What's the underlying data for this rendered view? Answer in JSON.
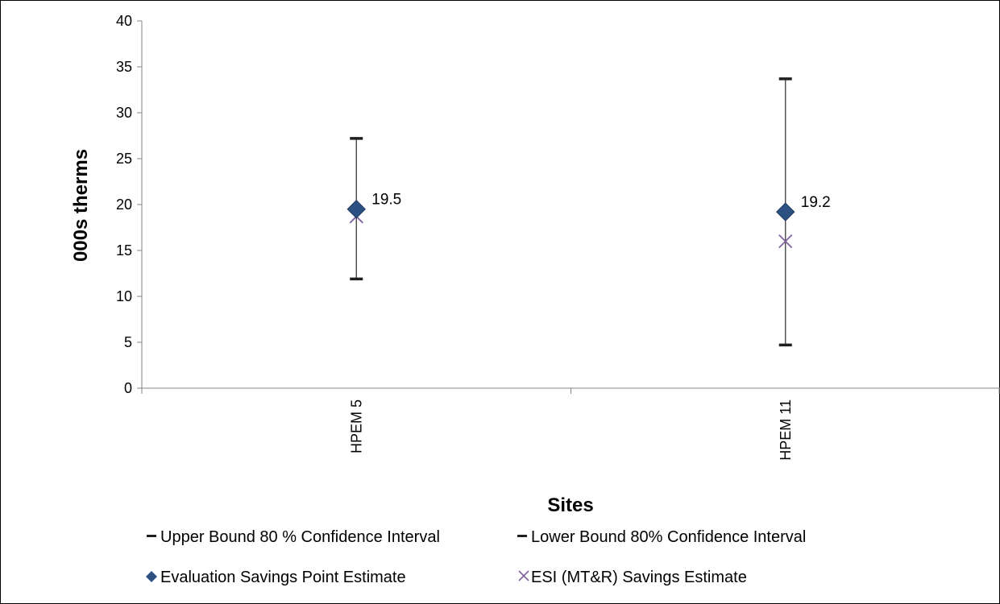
{
  "chart_data": {
    "type": "scatter",
    "title": "",
    "xlabel": "Sites",
    "ylabel": "000s therms",
    "categories": [
      "HPEM 5",
      "HPEM 11"
    ],
    "ylim": [
      0,
      40
    ],
    "yticks": [
      0,
      5,
      10,
      15,
      20,
      25,
      30,
      35,
      40
    ],
    "grid": false,
    "series": [
      {
        "name": "Upper Bound 80 % Confidence Interval",
        "marker": "dash",
        "color": "#1f1f1f",
        "values": [
          27.2,
          33.7
        ]
      },
      {
        "name": "Lower Bound 80% Confidence Interval",
        "marker": "dash",
        "color": "#1f1f1f",
        "values": [
          11.9,
          4.7
        ]
      },
      {
        "name": "Evaluation Savings Point Estimate",
        "marker": "diamond",
        "color": "#2c5082",
        "values": [
          19.5,
          19.2
        ],
        "data_labels": [
          "19.5",
          "19.2"
        ]
      },
      {
        "name": "ESI (MT&R) Savings Estimate",
        "marker": "x",
        "color": "#7e63a0",
        "values": [
          18.7,
          16.0
        ]
      }
    ],
    "legend_position": "bottom"
  }
}
